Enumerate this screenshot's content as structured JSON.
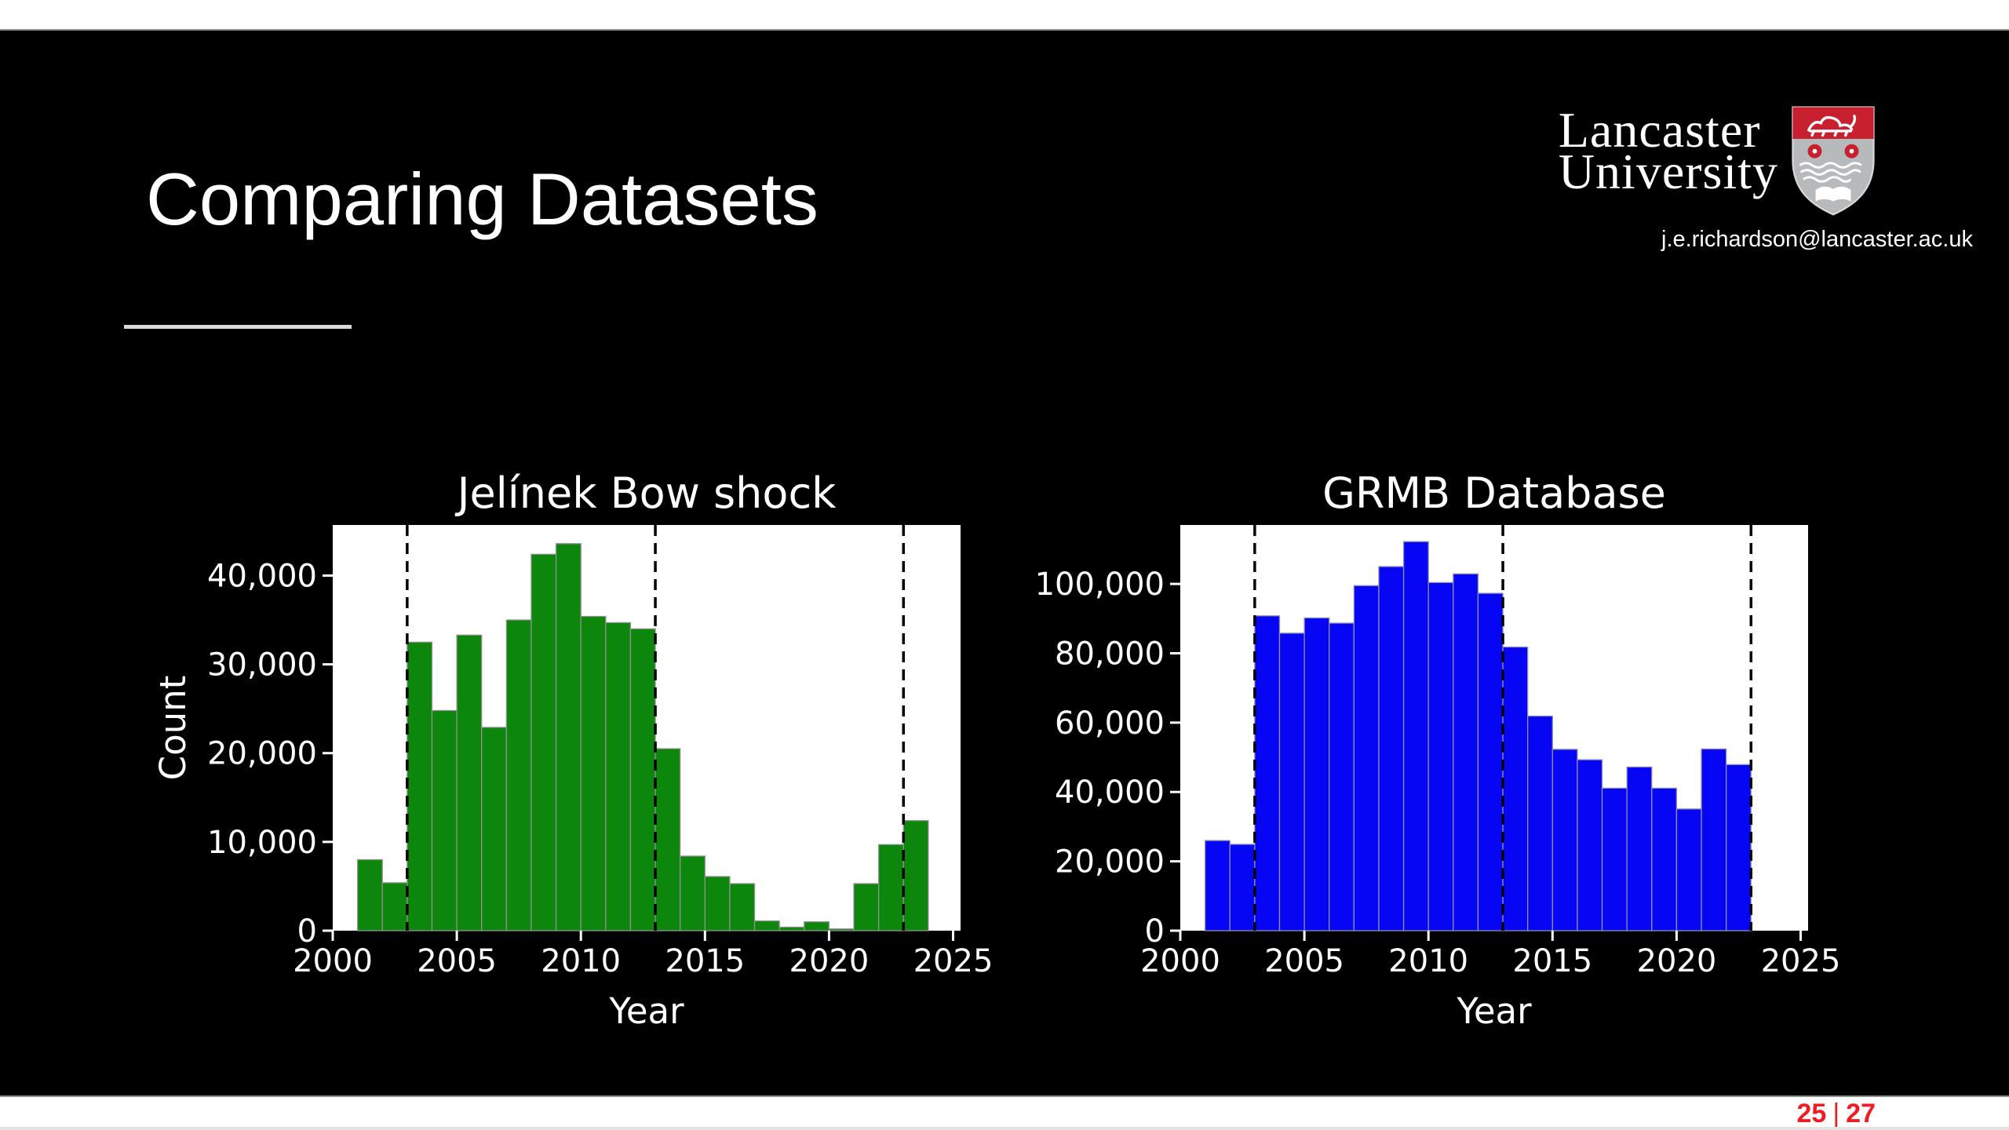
{
  "slide": {
    "title": "Comparing Datasets",
    "bg_color": "#000000"
  },
  "logo": {
    "line1": "Lancaster",
    "line2": "University",
    "email": "j.e.richardson@lancaster.ac.uk",
    "shield_red": "#c8202e",
    "shield_gray": "#b7babc"
  },
  "footer": {
    "current": "25",
    "separator": "|",
    "total": "27",
    "color": "#ee1d25"
  },
  "icons": {
    "shield": "lancaster-shield"
  },
  "chart_data": [
    {
      "type": "bar",
      "title": "Jelínek Bow shock",
      "xlabel": "Year",
      "ylabel": "Count",
      "bar_color": "#0c870c",
      "bar_edge_color": "#909090",
      "plot_bg": "#ffffff",
      "text_color": "#ffffff",
      "vline_color": "#000000",
      "bin_width": 1,
      "categories": [
        2001,
        2002,
        2003,
        2004,
        2005,
        2006,
        2007,
        2008,
        2009,
        2010,
        2011,
        2012,
        2013,
        2014,
        2015,
        2016,
        2017,
        2018,
        2019,
        2020,
        2021,
        2022,
        2023
      ],
      "values": [
        8000,
        5400,
        32500,
        24800,
        33300,
        22900,
        35000,
        42400,
        43600,
        35400,
        34700,
        34000,
        20500,
        8400,
        6100,
        5300,
        1100,
        400,
        1000,
        200,
        5300,
        9700,
        12400
      ],
      "xlim": [
        2000,
        2025.3
      ],
      "ylim": [
        0,
        45700
      ],
      "xticks": [
        2000,
        2005,
        2010,
        2015,
        2020,
        2025
      ],
      "yticks": [
        0,
        10000,
        20000,
        30000,
        40000
      ],
      "ytick_labels": [
        "0",
        "10,000",
        "20,000",
        "30,000",
        "40,000"
      ],
      "vlines": [
        2003,
        2013,
        2023
      ],
      "grid": false,
      "legend": null
    },
    {
      "type": "bar",
      "title": "GRMB Database",
      "xlabel": "Year",
      "ylabel": "",
      "bar_color": "#0606f5",
      "bar_edge_color": "#8f8fb0",
      "plot_bg": "#ffffff",
      "text_color": "#ffffff",
      "vline_color": "#000000",
      "bin_width": 1,
      "categories": [
        2001,
        2002,
        2003,
        2004,
        2005,
        2006,
        2007,
        2008,
        2009,
        2010,
        2011,
        2012,
        2013,
        2014,
        2015,
        2016,
        2017,
        2018,
        2019,
        2020,
        2021,
        2022
      ],
      "values": [
        26000,
        24900,
        90800,
        85800,
        90200,
        88700,
        99500,
        105000,
        112200,
        100400,
        102900,
        97300,
        81800,
        61900,
        52300,
        49300,
        41100,
        47200,
        41100,
        35100,
        52400,
        47900
      ],
      "xlim": [
        2000,
        2025.3
      ],
      "ylim": [
        0,
        117000
      ],
      "xticks": [
        2000,
        2005,
        2010,
        2015,
        2020,
        2025
      ],
      "yticks": [
        0,
        20000,
        40000,
        60000,
        80000,
        100000
      ],
      "ytick_labels": [
        "0",
        "20,000",
        "40,000",
        "60,000",
        "80,000",
        "100,000"
      ],
      "vlines": [
        2003,
        2013,
        2023
      ],
      "grid": false,
      "legend": null
    }
  ]
}
